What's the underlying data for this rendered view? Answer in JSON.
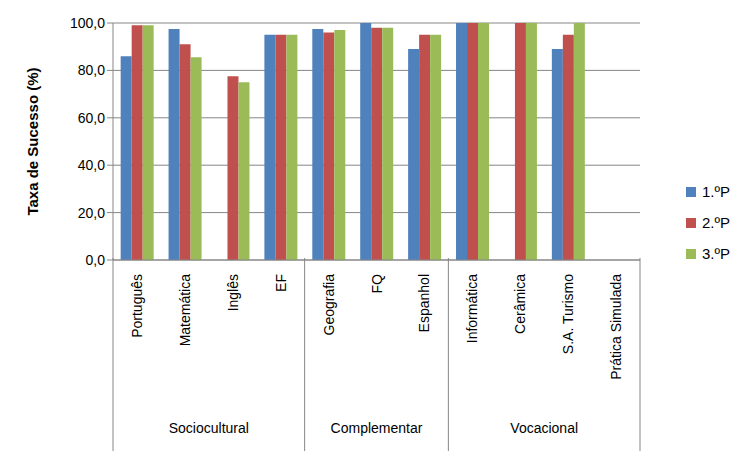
{
  "chart_data": {
    "type": "bar",
    "categories": [
      "Português",
      "Matemática",
      "Inglês",
      "EF",
      "Geografia",
      "FQ",
      "Espanhol",
      "Informática",
      "Cerâmica",
      "S.A. Turismo",
      "Prática Simulada"
    ],
    "groups": [
      {
        "name": "Sociocultural",
        "categories": [
          "Português",
          "Matemática",
          "Inglês",
          "EF"
        ]
      },
      {
        "name": "Complementar",
        "categories": [
          "Geografia",
          "FQ",
          "Espanhol"
        ]
      },
      {
        "name": "Vocacional",
        "categories": [
          "Informática",
          "Cerâmica",
          "S.A. Turismo",
          "Prática Simulada"
        ]
      }
    ],
    "series": [
      {
        "name": "1.ºP",
        "color": "#4f81bd",
        "values": [
          86,
          97.5,
          null,
          95,
          97.5,
          100,
          89,
          100,
          null,
          89,
          null
        ]
      },
      {
        "name": "2.ºP",
        "color": "#c0504d",
        "values": [
          99,
          91,
          77.5,
          95,
          96,
          98,
          95,
          100,
          100,
          95,
          null
        ]
      },
      {
        "name": "3.ºP",
        "color": "#9bbb59",
        "values": [
          99,
          85.5,
          75,
          95,
          97,
          98,
          95,
          100,
          100,
          100,
          null
        ]
      }
    ],
    "ylim": [
      0,
      100
    ],
    "yticks": [
      {
        "value": 0,
        "label": "0,0"
      },
      {
        "value": 20,
        "label": "20,0"
      },
      {
        "value": 40,
        "label": "40,0"
      },
      {
        "value": 60,
        "label": "60,0"
      },
      {
        "value": 80,
        "label": "80,0"
      },
      {
        "value": 100,
        "label": "100,0"
      }
    ],
    "y_label": "Taxa de Sucesso (%)",
    "grid": true,
    "legend": "right"
  }
}
